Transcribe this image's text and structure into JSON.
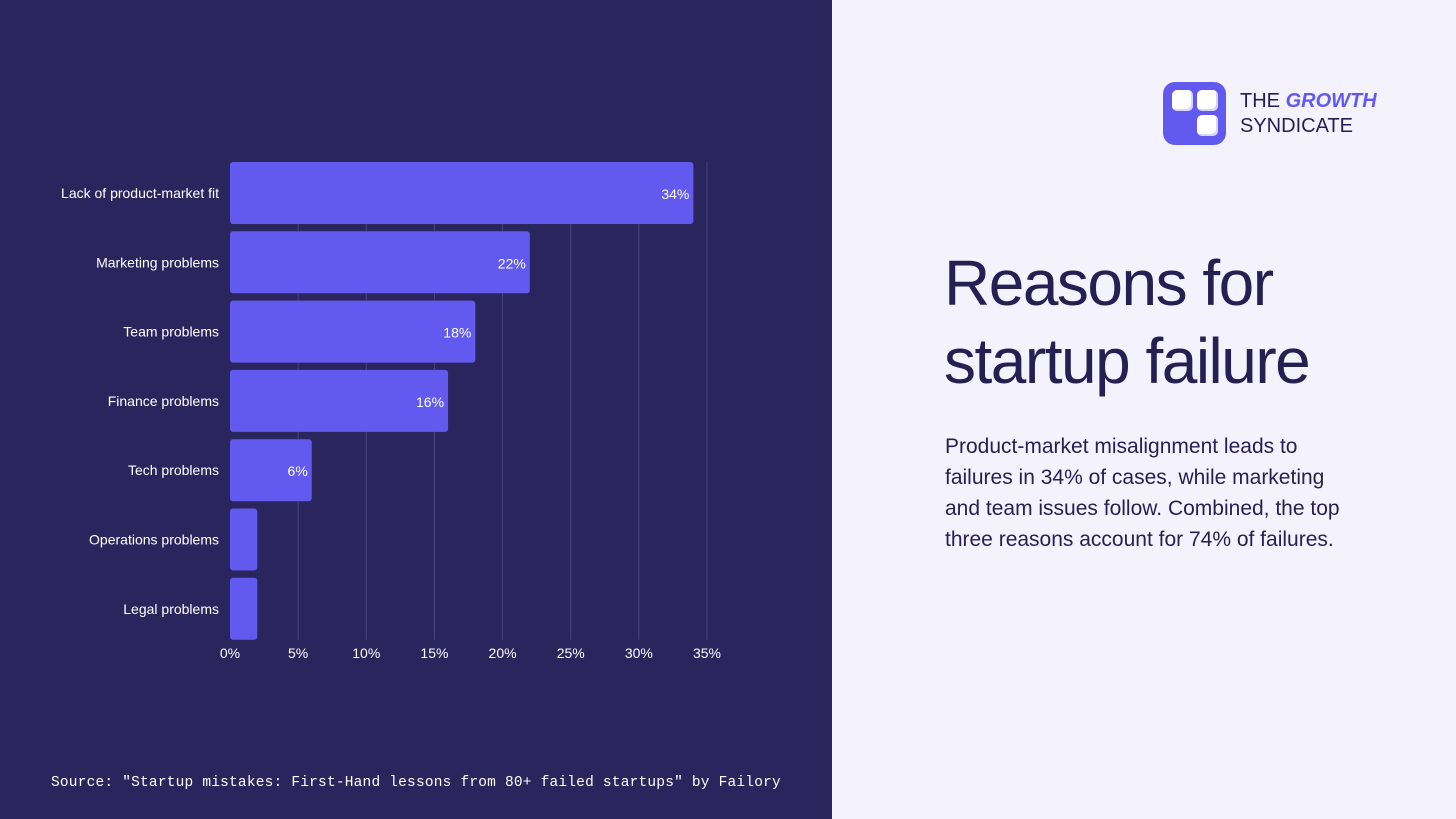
{
  "chart_data": {
    "type": "bar",
    "orientation": "horizontal",
    "categories": [
      "Lack of product-market fit",
      "Marketing problems",
      "Team problems",
      "Finance problems",
      "Tech problems",
      "Operations problems",
      "Legal problems"
    ],
    "values": [
      34,
      22,
      18,
      16,
      6,
      2,
      2
    ],
    "data_labels": [
      "34%",
      "22%",
      "18%",
      "16%",
      "6%",
      "",
      ""
    ],
    "x_ticks": [
      0,
      5,
      10,
      15,
      20,
      25,
      30,
      35
    ],
    "x_tick_labels": [
      "0%",
      "5%",
      "10%",
      "15%",
      "20%",
      "25%",
      "30%",
      "35%"
    ],
    "xlim": [
      0,
      35
    ],
    "grid": true,
    "colors": {
      "bar": "#6259ef",
      "background": "#2b255e",
      "grid": "#4a4580",
      "text": "#ffffff"
    }
  },
  "source": "Source: \"Startup mistakes: First-Hand lessons from 80+ failed startups\" by Failory",
  "brand": {
    "line1_prefix": "THE ",
    "line1_highlight": "GROWTH",
    "line2": "SYNDICATE",
    "logo_icon": "four-squares-logo-icon"
  },
  "heading": "Reasons for startup failure",
  "description": "Product-market misalignment leads to failures in 34% of cases, while marketing and team issues follow. Combined, the top three reasons account for 74% of failures."
}
